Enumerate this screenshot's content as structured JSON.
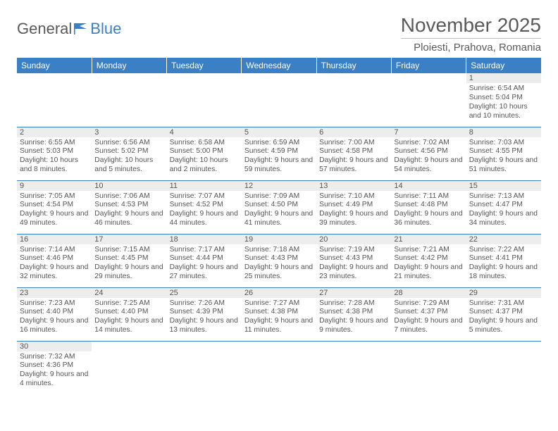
{
  "logo": {
    "text1": "General",
    "text2": "Blue"
  },
  "title": "November 2025",
  "location": "Ploiesti, Prahova, Romania",
  "colors": {
    "header_bg": "#3b7fc4",
    "header_text": "#ffffff",
    "daynum_bg": "#ededed",
    "text": "#555555",
    "rule": "#3b7fc4"
  },
  "dayHeaders": [
    "Sunday",
    "Monday",
    "Tuesday",
    "Wednesday",
    "Thursday",
    "Friday",
    "Saturday"
  ],
  "weeks": [
    [
      {
        "n": "",
        "rise": "",
        "set": "",
        "day": ""
      },
      {
        "n": "",
        "rise": "",
        "set": "",
        "day": ""
      },
      {
        "n": "",
        "rise": "",
        "set": "",
        "day": ""
      },
      {
        "n": "",
        "rise": "",
        "set": "",
        "day": ""
      },
      {
        "n": "",
        "rise": "",
        "set": "",
        "day": ""
      },
      {
        "n": "",
        "rise": "",
        "set": "",
        "day": ""
      },
      {
        "n": "1",
        "rise": "Sunrise: 6:54 AM",
        "set": "Sunset: 5:04 PM",
        "day": "Daylight: 10 hours and 10 minutes."
      }
    ],
    [
      {
        "n": "2",
        "rise": "Sunrise: 6:55 AM",
        "set": "Sunset: 5:03 PM",
        "day": "Daylight: 10 hours and 8 minutes."
      },
      {
        "n": "3",
        "rise": "Sunrise: 6:56 AM",
        "set": "Sunset: 5:02 PM",
        "day": "Daylight: 10 hours and 5 minutes."
      },
      {
        "n": "4",
        "rise": "Sunrise: 6:58 AM",
        "set": "Sunset: 5:00 PM",
        "day": "Daylight: 10 hours and 2 minutes."
      },
      {
        "n": "5",
        "rise": "Sunrise: 6:59 AM",
        "set": "Sunset: 4:59 PM",
        "day": "Daylight: 9 hours and 59 minutes."
      },
      {
        "n": "6",
        "rise": "Sunrise: 7:00 AM",
        "set": "Sunset: 4:58 PM",
        "day": "Daylight: 9 hours and 57 minutes."
      },
      {
        "n": "7",
        "rise": "Sunrise: 7:02 AM",
        "set": "Sunset: 4:56 PM",
        "day": "Daylight: 9 hours and 54 minutes."
      },
      {
        "n": "8",
        "rise": "Sunrise: 7:03 AM",
        "set": "Sunset: 4:55 PM",
        "day": "Daylight: 9 hours and 51 minutes."
      }
    ],
    [
      {
        "n": "9",
        "rise": "Sunrise: 7:05 AM",
        "set": "Sunset: 4:54 PM",
        "day": "Daylight: 9 hours and 49 minutes."
      },
      {
        "n": "10",
        "rise": "Sunrise: 7:06 AM",
        "set": "Sunset: 4:53 PM",
        "day": "Daylight: 9 hours and 46 minutes."
      },
      {
        "n": "11",
        "rise": "Sunrise: 7:07 AM",
        "set": "Sunset: 4:52 PM",
        "day": "Daylight: 9 hours and 44 minutes."
      },
      {
        "n": "12",
        "rise": "Sunrise: 7:09 AM",
        "set": "Sunset: 4:50 PM",
        "day": "Daylight: 9 hours and 41 minutes."
      },
      {
        "n": "13",
        "rise": "Sunrise: 7:10 AM",
        "set": "Sunset: 4:49 PM",
        "day": "Daylight: 9 hours and 39 minutes."
      },
      {
        "n": "14",
        "rise": "Sunrise: 7:11 AM",
        "set": "Sunset: 4:48 PM",
        "day": "Daylight: 9 hours and 36 minutes."
      },
      {
        "n": "15",
        "rise": "Sunrise: 7:13 AM",
        "set": "Sunset: 4:47 PM",
        "day": "Daylight: 9 hours and 34 minutes."
      }
    ],
    [
      {
        "n": "16",
        "rise": "Sunrise: 7:14 AM",
        "set": "Sunset: 4:46 PM",
        "day": "Daylight: 9 hours and 32 minutes."
      },
      {
        "n": "17",
        "rise": "Sunrise: 7:15 AM",
        "set": "Sunset: 4:45 PM",
        "day": "Daylight: 9 hours and 29 minutes."
      },
      {
        "n": "18",
        "rise": "Sunrise: 7:17 AM",
        "set": "Sunset: 4:44 PM",
        "day": "Daylight: 9 hours and 27 minutes."
      },
      {
        "n": "19",
        "rise": "Sunrise: 7:18 AM",
        "set": "Sunset: 4:43 PM",
        "day": "Daylight: 9 hours and 25 minutes."
      },
      {
        "n": "20",
        "rise": "Sunrise: 7:19 AM",
        "set": "Sunset: 4:43 PM",
        "day": "Daylight: 9 hours and 23 minutes."
      },
      {
        "n": "21",
        "rise": "Sunrise: 7:21 AM",
        "set": "Sunset: 4:42 PM",
        "day": "Daylight: 9 hours and 21 minutes."
      },
      {
        "n": "22",
        "rise": "Sunrise: 7:22 AM",
        "set": "Sunset: 4:41 PM",
        "day": "Daylight: 9 hours and 18 minutes."
      }
    ],
    [
      {
        "n": "23",
        "rise": "Sunrise: 7:23 AM",
        "set": "Sunset: 4:40 PM",
        "day": "Daylight: 9 hours and 16 minutes."
      },
      {
        "n": "24",
        "rise": "Sunrise: 7:25 AM",
        "set": "Sunset: 4:40 PM",
        "day": "Daylight: 9 hours and 14 minutes."
      },
      {
        "n": "25",
        "rise": "Sunrise: 7:26 AM",
        "set": "Sunset: 4:39 PM",
        "day": "Daylight: 9 hours and 13 minutes."
      },
      {
        "n": "26",
        "rise": "Sunrise: 7:27 AM",
        "set": "Sunset: 4:38 PM",
        "day": "Daylight: 9 hours and 11 minutes."
      },
      {
        "n": "27",
        "rise": "Sunrise: 7:28 AM",
        "set": "Sunset: 4:38 PM",
        "day": "Daylight: 9 hours and 9 minutes."
      },
      {
        "n": "28",
        "rise": "Sunrise: 7:29 AM",
        "set": "Sunset: 4:37 PM",
        "day": "Daylight: 9 hours and 7 minutes."
      },
      {
        "n": "29",
        "rise": "Sunrise: 7:31 AM",
        "set": "Sunset: 4:37 PM",
        "day": "Daylight: 9 hours and 5 minutes."
      }
    ],
    [
      {
        "n": "30",
        "rise": "Sunrise: 7:32 AM",
        "set": "Sunset: 4:36 PM",
        "day": "Daylight: 9 hours and 4 minutes."
      },
      {
        "n": "",
        "rise": "",
        "set": "",
        "day": ""
      },
      {
        "n": "",
        "rise": "",
        "set": "",
        "day": ""
      },
      {
        "n": "",
        "rise": "",
        "set": "",
        "day": ""
      },
      {
        "n": "",
        "rise": "",
        "set": "",
        "day": ""
      },
      {
        "n": "",
        "rise": "",
        "set": "",
        "day": ""
      },
      {
        "n": "",
        "rise": "",
        "set": "",
        "day": ""
      }
    ]
  ]
}
